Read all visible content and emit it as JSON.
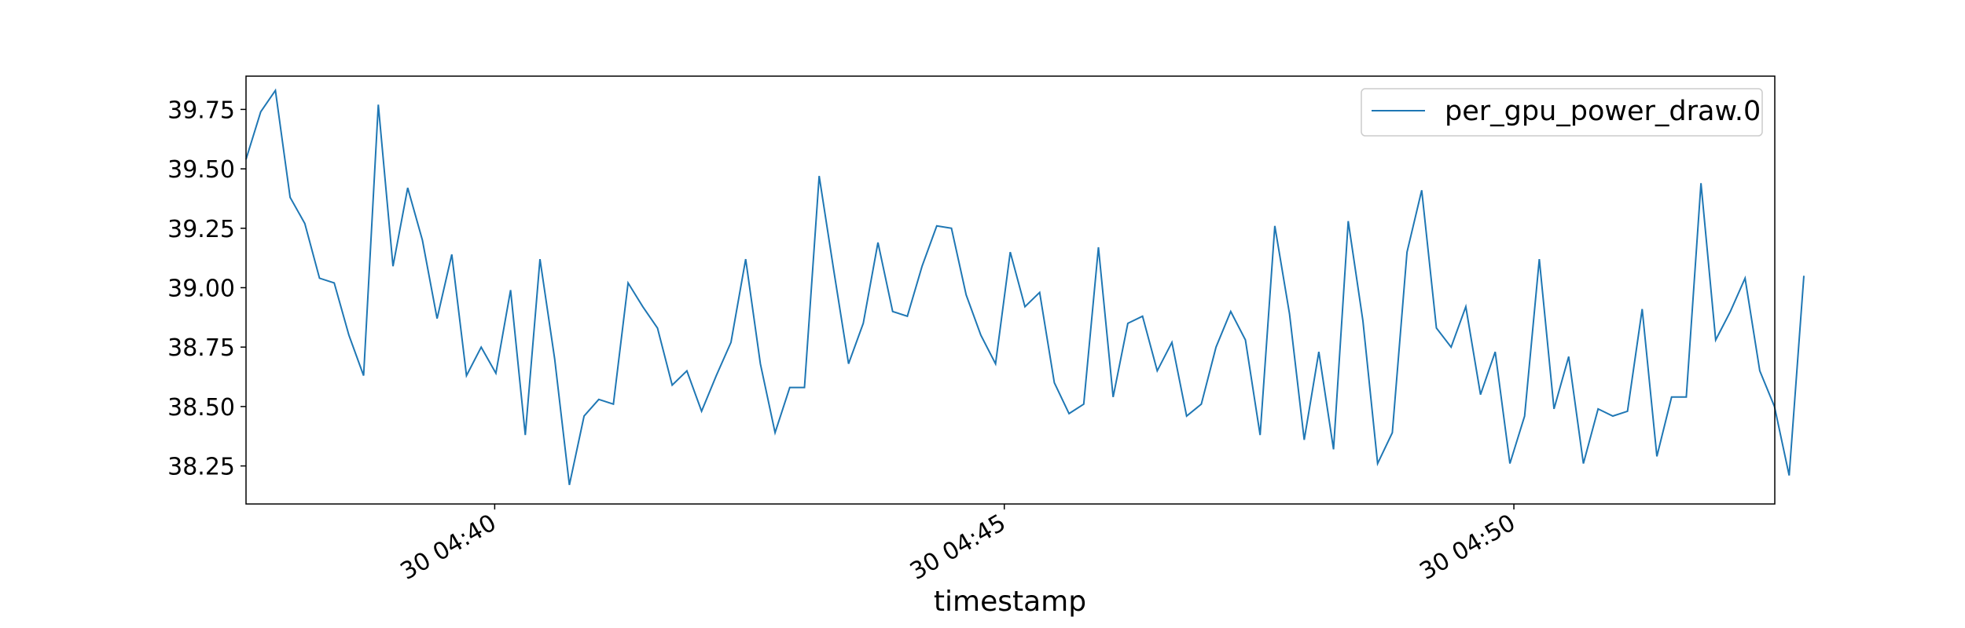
{
  "chart_data": {
    "type": "line",
    "title": "",
    "xlabel": "timestamp",
    "ylabel": "",
    "x_ticks": [
      {
        "label": "30 04:40",
        "t": 4
      },
      {
        "label": "30 04:45",
        "t": 9
      },
      {
        "label": "30 04:50",
        "t": 14
      }
    ],
    "xlim": [
      1.56,
      16.56
    ],
    "y_ticks": [
      "38.25",
      "38.50",
      "38.75",
      "39.00",
      "39.25",
      "39.50",
      "39.75"
    ],
    "ylim": [
      38.09,
      39.89
    ],
    "grid": false,
    "legend": {
      "location": "upper right"
    },
    "line_color": "#1f77b4",
    "series": [
      {
        "name": "per_gpu_power_draw.0",
        "t_start": 1.56,
        "t_step": 0.1442,
        "values": [
          39.54,
          39.74,
          39.83,
          39.38,
          39.27,
          39.04,
          39.02,
          38.8,
          38.63,
          39.77,
          39.09,
          39.42,
          39.2,
          38.87,
          39.14,
          38.63,
          38.75,
          38.64,
          38.99,
          38.38,
          39.12,
          38.7,
          38.17,
          38.46,
          38.53,
          38.51,
          39.02,
          38.92,
          38.83,
          38.59,
          38.65,
          38.48,
          38.63,
          38.77,
          39.12,
          38.68,
          38.39,
          38.58,
          38.58,
          39.47,
          39.07,
          38.68,
          38.85,
          39.19,
          38.9,
          38.88,
          39.09,
          39.26,
          39.25,
          38.97,
          38.8,
          38.68,
          39.15,
          38.92,
          38.98,
          38.6,
          38.47,
          38.51,
          39.17,
          38.54,
          38.85,
          38.88,
          38.65,
          38.77,
          38.46,
          38.51,
          38.75,
          38.9,
          38.78,
          38.38,
          39.26,
          38.89,
          38.36,
          38.73,
          38.32,
          39.28,
          38.86,
          38.26,
          38.39,
          39.15,
          39.41,
          38.83,
          38.75,
          38.92,
          38.55,
          38.73,
          38.26,
          38.46,
          39.12,
          38.49,
          38.71,
          38.26,
          38.49,
          38.46,
          38.48,
          38.91,
          38.29,
          38.54,
          38.54,
          39.44,
          38.78,
          38.9,
          39.04,
          38.65,
          38.5,
          38.21,
          39.05
        ]
      }
    ]
  }
}
